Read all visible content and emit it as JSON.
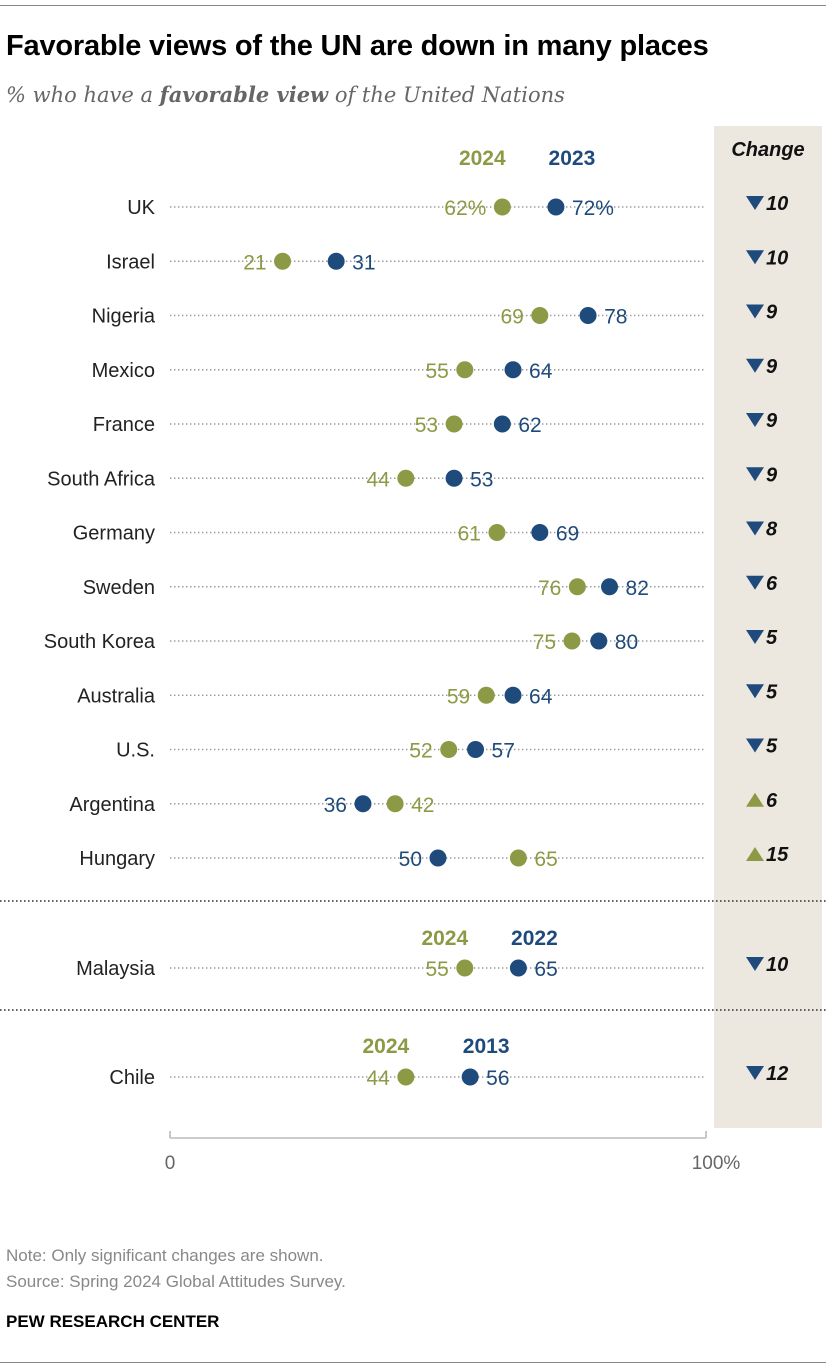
{
  "title": "Favorable views of the UN are down in many places",
  "subtitle": {
    "prefix": "% who have a ",
    "emphasis": "favorable view",
    "suffix": " of the United Nations"
  },
  "change_header": "Change",
  "colors": {
    "y2024": "#8d9a45",
    "prior": "#1f4a7c",
    "change_panel": "#ece8e0",
    "dots": "#999999"
  },
  "chart_data": [
    {
      "type": "dot-plot",
      "xlim": [
        0,
        100
      ],
      "tick_labels": [
        "0",
        "100%"
      ],
      "year_labels": {
        "y2024": "2024",
        "prior": "2023"
      },
      "rows": [
        {
          "country": "UK",
          "v2024": 62,
          "vprior": 72,
          "label2024": "62%",
          "labelprior": "72%",
          "change": "10",
          "direction": "down"
        },
        {
          "country": "Israel",
          "v2024": 21,
          "vprior": 31,
          "label2024": "21",
          "labelprior": "31",
          "change": "10",
          "direction": "down"
        },
        {
          "country": "Nigeria",
          "v2024": 69,
          "vprior": 78,
          "label2024": "69",
          "labelprior": "78",
          "change": "9",
          "direction": "down"
        },
        {
          "country": "Mexico",
          "v2024": 55,
          "vprior": 64,
          "label2024": "55",
          "labelprior": "64",
          "change": "9",
          "direction": "down"
        },
        {
          "country": "France",
          "v2024": 53,
          "vprior": 62,
          "label2024": "53",
          "labelprior": "62",
          "change": "9",
          "direction": "down"
        },
        {
          "country": "South Africa",
          "v2024": 44,
          "vprior": 53,
          "label2024": "44",
          "labelprior": "53",
          "change": "9",
          "direction": "down"
        },
        {
          "country": "Germany",
          "v2024": 61,
          "vprior": 69,
          "label2024": "61",
          "labelprior": "69",
          "change": "8",
          "direction": "down"
        },
        {
          "country": "Sweden",
          "v2024": 76,
          "vprior": 82,
          "label2024": "76",
          "labelprior": "82",
          "change": "6",
          "direction": "down"
        },
        {
          "country": "South Korea",
          "v2024": 75,
          "vprior": 80,
          "label2024": "75",
          "labelprior": "80",
          "change": "5",
          "direction": "down"
        },
        {
          "country": "Australia",
          "v2024": 59,
          "vprior": 64,
          "label2024": "59",
          "labelprior": "64",
          "change": "5",
          "direction": "down"
        },
        {
          "country": "U.S.",
          "v2024": 52,
          "vprior": 57,
          "label2024": "52",
          "labelprior": "57",
          "change": "5",
          "direction": "down"
        },
        {
          "country": "Argentina",
          "v2024": 42,
          "vprior": 36,
          "label2024": "42",
          "labelprior": "36",
          "change": "6",
          "direction": "up"
        },
        {
          "country": "Hungary",
          "v2024": 65,
          "vprior": 50,
          "label2024": "65",
          "labelprior": "50",
          "change": "15",
          "direction": "up"
        }
      ]
    },
    {
      "type": "dot-plot",
      "xlim": [
        0,
        100
      ],
      "year_labels": {
        "y2024": "2024",
        "prior": "2022"
      },
      "rows": [
        {
          "country": "Malaysia",
          "v2024": 55,
          "vprior": 65,
          "label2024": "55",
          "labelprior": "65",
          "change": "10",
          "direction": "down"
        }
      ]
    },
    {
      "type": "dot-plot",
      "xlim": [
        0,
        100
      ],
      "year_labels": {
        "y2024": "2024",
        "prior": "2013"
      },
      "rows": [
        {
          "country": "Chile",
          "v2024": 44,
          "vprior": 56,
          "label2024": "44",
          "labelprior": "56",
          "change": "12",
          "direction": "down"
        }
      ]
    }
  ],
  "notes": {
    "note": "Note: Only significant changes are shown.",
    "source": "Source: Spring 2024 Global Attitudes Survey."
  },
  "brand": "PEW RESEARCH CENTER"
}
